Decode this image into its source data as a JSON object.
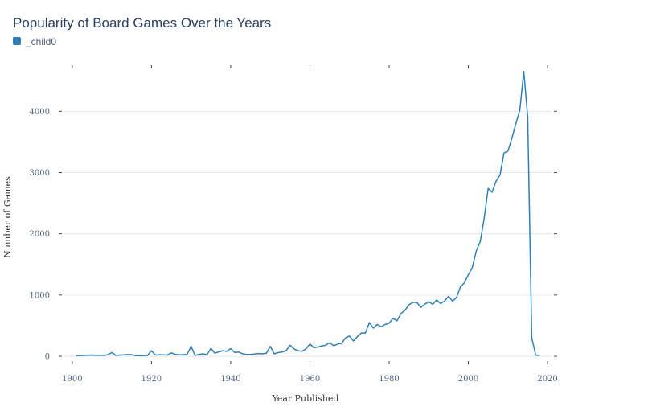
{
  "chart_data": {
    "type": "line",
    "title": "Popularity of Board Games Over the Years",
    "xlabel": "Year Published",
    "ylabel": "Number of Games",
    "xlim": [
      1898,
      2021
    ],
    "ylim": [
      0,
      4700
    ],
    "x_ticks": [
      1900,
      1920,
      1940,
      1960,
      1980,
      2000,
      2020
    ],
    "y_ticks": [
      0,
      1000,
      2000,
      3000,
      4000
    ],
    "grid": true,
    "legend": "top-left",
    "series": [
      {
        "name": "_child0",
        "color": "#2f7fb6",
        "x": [
          1901,
          1902,
          1903,
          1904,
          1905,
          1906,
          1907,
          1908,
          1909,
          1910,
          1911,
          1912,
          1913,
          1914,
          1915,
          1916,
          1917,
          1918,
          1919,
          1920,
          1921,
          1922,
          1923,
          1924,
          1925,
          1926,
          1927,
          1928,
          1929,
          1930,
          1931,
          1932,
          1933,
          1934,
          1935,
          1936,
          1937,
          1938,
          1939,
          1940,
          1941,
          1942,
          1943,
          1944,
          1945,
          1946,
          1947,
          1948,
          1949,
          1950,
          1951,
          1952,
          1953,
          1954,
          1955,
          1956,
          1957,
          1958,
          1959,
          1960,
          1961,
          1962,
          1963,
          1964,
          1965,
          1966,
          1967,
          1968,
          1969,
          1970,
          1971,
          1972,
          1973,
          1974,
          1975,
          1976,
          1977,
          1978,
          1979,
          1980,
          1981,
          1982,
          1983,
          1984,
          1985,
          1986,
          1987,
          1988,
          1989,
          1990,
          1991,
          1992,
          1993,
          1994,
          1995,
          1996,
          1997,
          1998,
          1999,
          2000,
          2001,
          2002,
          2003,
          2004,
          2005,
          2006,
          2007,
          2008,
          2009,
          2010,
          2011,
          2012,
          2013,
          2014,
          2015,
          2016,
          2017,
          2018
        ],
        "y": [
          10,
          12,
          15,
          18,
          20,
          15,
          18,
          15,
          25,
          60,
          15,
          20,
          22,
          28,
          25,
          10,
          12,
          10,
          15,
          90,
          20,
          25,
          22,
          20,
          55,
          30,
          25,
          25,
          30,
          160,
          15,
          30,
          40,
          25,
          130,
          50,
          70,
          90,
          80,
          125,
          60,
          70,
          40,
          30,
          30,
          35,
          45,
          40,
          50,
          160,
          40,
          60,
          70,
          90,
          180,
          120,
          90,
          80,
          120,
          200,
          140,
          150,
          170,
          180,
          220,
          170,
          200,
          210,
          300,
          330,
          250,
          320,
          380,
          380,
          550,
          460,
          520,
          480,
          520,
          540,
          620,
          580,
          700,
          750,
          840,
          880,
          880,
          800,
          850,
          890,
          850,
          920,
          860,
          900,
          980,
          900,
          960,
          1130,
          1200,
          1330,
          1450,
          1720,
          1870,
          2250,
          2740,
          2680,
          2860,
          2960,
          3320,
          3350,
          3560,
          3800,
          4020,
          4650,
          3900,
          300,
          20,
          10
        ]
      }
    ]
  }
}
